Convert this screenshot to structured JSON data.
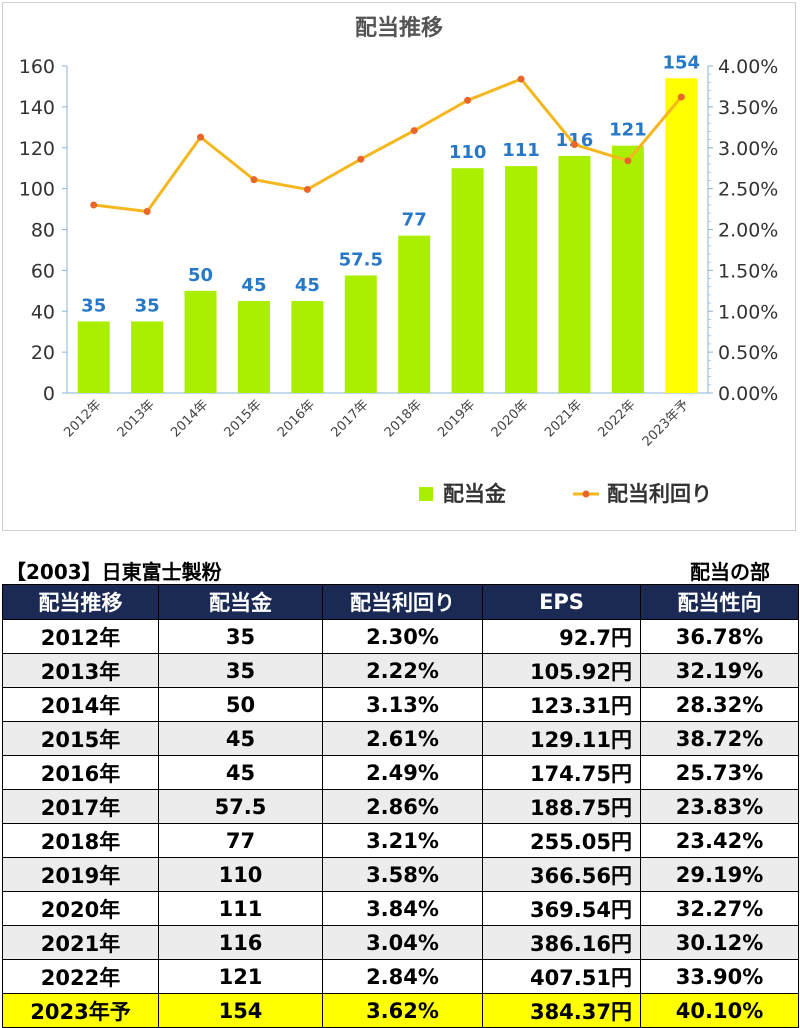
{
  "chart_data": {
    "type": "bar",
    "title": "配当推移",
    "categories": [
      "2012年",
      "2013年",
      "2014年",
      "2015年",
      "2016年",
      "2017年",
      "2018年",
      "2019年",
      "2020年",
      "2021年",
      "2022年",
      "2023年予"
    ],
    "series": [
      {
        "name": "配当金",
        "type": "bar",
        "axis": "left",
        "values": [
          35,
          35,
          50,
          45,
          45,
          57.5,
          77,
          110,
          111,
          116,
          121,
          154
        ],
        "labels": [
          "35",
          "35",
          "50",
          "45",
          "45",
          "57.5",
          "77",
          "110",
          "111",
          "116",
          "121",
          "154"
        ],
        "color": "#aaee00",
        "highlight_last_color": "#ffff00"
      },
      {
        "name": "配当利回り",
        "type": "line",
        "axis": "right",
        "values": [
          2.3,
          2.22,
          3.13,
          2.61,
          2.49,
          2.86,
          3.21,
          3.58,
          3.84,
          3.04,
          2.84,
          3.62
        ],
        "color": "#f5b71e",
        "marker_color": "#e8662a"
      }
    ],
    "ylim_left": [
      0,
      160
    ],
    "yticks_left": [
      "0",
      "20",
      "40",
      "60",
      "80",
      "100",
      "120",
      "140",
      "160"
    ],
    "ylim_right": [
      0,
      4
    ],
    "yticks_right": [
      "0.00%",
      "0.50%",
      "1.00%",
      "1.50%",
      "2.00%",
      "2.50%",
      "3.00%",
      "3.50%",
      "4.00%"
    ],
    "legend_position": "bottom-right",
    "label_color": "#2878c8"
  },
  "table": {
    "company": "【2003】日東富士製粉",
    "section": "配当の部",
    "headers": [
      "配当推移",
      "配当金",
      "配当利回り",
      "EPS",
      "配当性向"
    ],
    "rows": [
      [
        "2012年",
        "35",
        "2.30%",
        "92.7円",
        "36.78%"
      ],
      [
        "2013年",
        "35",
        "2.22%",
        "105.92円",
        "32.19%"
      ],
      [
        "2014年",
        "50",
        "3.13%",
        "123.31円",
        "28.32%"
      ],
      [
        "2015年",
        "45",
        "2.61%",
        "129.11円",
        "38.72%"
      ],
      [
        "2016年",
        "45",
        "2.49%",
        "174.75円",
        "25.73%"
      ],
      [
        "2017年",
        "57.5",
        "2.86%",
        "188.75円",
        "23.83%"
      ],
      [
        "2018年",
        "77",
        "3.21%",
        "255.05円",
        "23.42%"
      ],
      [
        "2019年",
        "110",
        "3.58%",
        "366.56円",
        "29.19%"
      ],
      [
        "2020年",
        "111",
        "3.84%",
        "369.54円",
        "32.27%"
      ],
      [
        "2021年",
        "116",
        "3.04%",
        "386.16円",
        "30.12%"
      ],
      [
        "2022年",
        "121",
        "2.84%",
        "407.51円",
        "33.90%"
      ],
      [
        "2023年予",
        "154",
        "3.62%",
        "384.37円",
        "40.10%"
      ]
    ]
  }
}
